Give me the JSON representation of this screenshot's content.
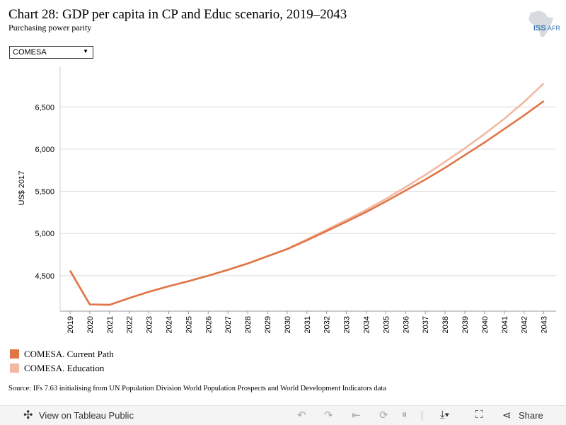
{
  "header": {
    "title": "Chart 28: GDP per capita in CP and Educ scenario, 2019–2043",
    "subtitle": "Purchasing power parity",
    "logo_text": "ISS|AFRICA"
  },
  "filter": {
    "selected": "COMESA"
  },
  "chart_data": {
    "type": "line",
    "x": [
      2019,
      2020,
      2021,
      2022,
      2023,
      2024,
      2025,
      2026,
      2027,
      2028,
      2029,
      2030,
      2031,
      2032,
      2033,
      2034,
      2035,
      2036,
      2037,
      2038,
      2039,
      2040,
      2041,
      2042,
      2043
    ],
    "series": [
      {
        "name": "COMESA. Current Path",
        "color": "#e07548",
        "values": [
          4560,
          4160,
          4155,
          4235,
          4310,
          4375,
          4435,
          4500,
          4570,
          4645,
          4730,
          4815,
          4920,
          5030,
          5140,
          5255,
          5380,
          5510,
          5640,
          5780,
          5930,
          6080,
          6240,
          6400,
          6570
        ]
      },
      {
        "name": "COMESA. Education",
        "color": "#f2b8a0",
        "values": [
          4560,
          4160,
          4155,
          4235,
          4310,
          4375,
          4435,
          4500,
          4570,
          4645,
          4730,
          4818,
          4930,
          5045,
          5160,
          5280,
          5410,
          5550,
          5695,
          5850,
          6010,
          6180,
          6360,
          6560,
          6780
        ]
      }
    ],
    "ylabel": "US$ 2017",
    "yticks": [
      "4,500",
      "5,000",
      "5,500",
      "6,000",
      "6,500"
    ],
    "ytick_values": [
      4500,
      5000,
      5500,
      6000,
      6500
    ],
    "ylim": [
      4080,
      6980
    ],
    "grid": true,
    "legend": "bottom-left"
  },
  "source": "Source: IFs 7.63 initialising from UN Population Division World Population Prospects and World Development Indicators data",
  "footer": {
    "view_label": "View on Tableau Public",
    "share_label": "Share"
  }
}
